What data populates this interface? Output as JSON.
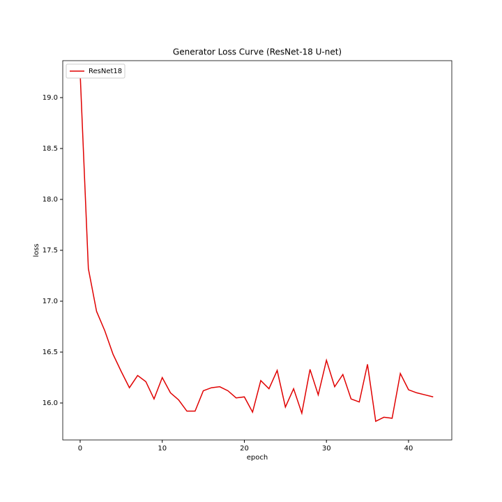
{
  "chart_data": {
    "type": "line",
    "title": "Generator Loss Curve (ResNet-18 U-net)",
    "x_label": "epoch",
    "y_label": "loss",
    "x": [
      0,
      1,
      2,
      3,
      4,
      5,
      6,
      7,
      8,
      9,
      10,
      11,
      12,
      13,
      14,
      15,
      16,
      17,
      18,
      19,
      20,
      21,
      22,
      23,
      24,
      25,
      26,
      27,
      28,
      29,
      30,
      31,
      32,
      33,
      34,
      35,
      36,
      37,
      38,
      39,
      40,
      41,
      42,
      43
    ],
    "series": [
      {
        "name": "ResNet18",
        "color": "#e00000",
        "values": [
          19.24,
          17.32,
          16.9,
          16.71,
          16.48,
          16.31,
          16.15,
          16.27,
          16.21,
          16.04,
          16.25,
          16.1,
          16.03,
          15.92,
          15.92,
          16.12,
          16.15,
          16.16,
          16.12,
          16.05,
          16.06,
          15.91,
          16.22,
          16.14,
          16.32,
          15.96,
          16.14,
          15.9,
          16.33,
          16.08,
          16.42,
          16.16,
          16.28,
          16.04,
          16.01,
          16.38,
          15.82,
          15.86,
          15.85,
          16.29,
          16.13,
          16.1,
          16.08,
          16.06
        ]
      }
    ],
    "xlim": [
      -2.12,
      45.27
    ],
    "ylim": [
      15.637,
      19.363
    ],
    "xticks": [
      0,
      10,
      20,
      30,
      40
    ],
    "yticks": [
      {
        "value": 16,
        "label": "16.0"
      },
      {
        "value": 16.5,
        "label": "16.5"
      },
      {
        "value": 17,
        "label": "17.0"
      },
      {
        "value": 17.5,
        "label": "17.5"
      },
      {
        "value": 18,
        "label": "18.0"
      },
      {
        "value": 18.5,
        "label": "18.5"
      },
      {
        "value": 19,
        "label": "19.0"
      }
    ],
    "legend": "upper left",
    "grid": false
  }
}
